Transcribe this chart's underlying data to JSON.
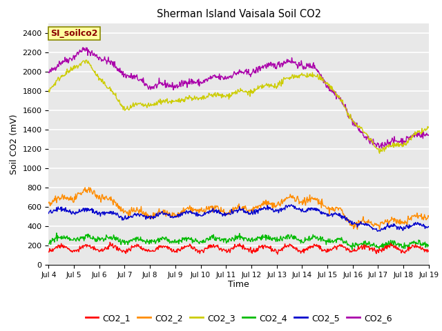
{
  "title": "Sherman Island Vaisala Soil CO2",
  "ylabel": "Soil CO2 (mV)",
  "xlabel": "Time",
  "annotation": "SI_soilco2",
  "annotation_color": "#8B0000",
  "annotation_bg": "#FFFFA0",
  "ylim": [
    0,
    2500
  ],
  "yticks": [
    0,
    200,
    400,
    600,
    800,
    1000,
    1200,
    1400,
    1600,
    1800,
    2000,
    2200,
    2400
  ],
  "plot_bg": "#E8E8E8",
  "grid_color": "#FFFFFF",
  "line_colors": {
    "CO2_1": "#FF0000",
    "CO2_2": "#FF8C00",
    "CO2_3": "#CCCC00",
    "CO2_4": "#00BB00",
    "CO2_5": "#0000CC",
    "CO2_6": "#AA00AA"
  },
  "x_start": 4,
  "x_end": 19,
  "n_points": 720,
  "xtick_labels": [
    "Jul 4",
    "Jul 5",
    "Jul 6",
    "Jul 7",
    "Jul 8",
    "Jul 9",
    "Jul 10",
    "Jul 11",
    "Jul 12",
    "Jul 13",
    "Jul 14",
    "Jul 15",
    "Jul 16",
    "Jul 17",
    "Jul 18",
    "Jul 19"
  ],
  "xtick_positions": [
    4,
    5,
    6,
    7,
    8,
    9,
    10,
    11,
    12,
    13,
    14,
    15,
    16,
    17,
    18,
    19
  ]
}
